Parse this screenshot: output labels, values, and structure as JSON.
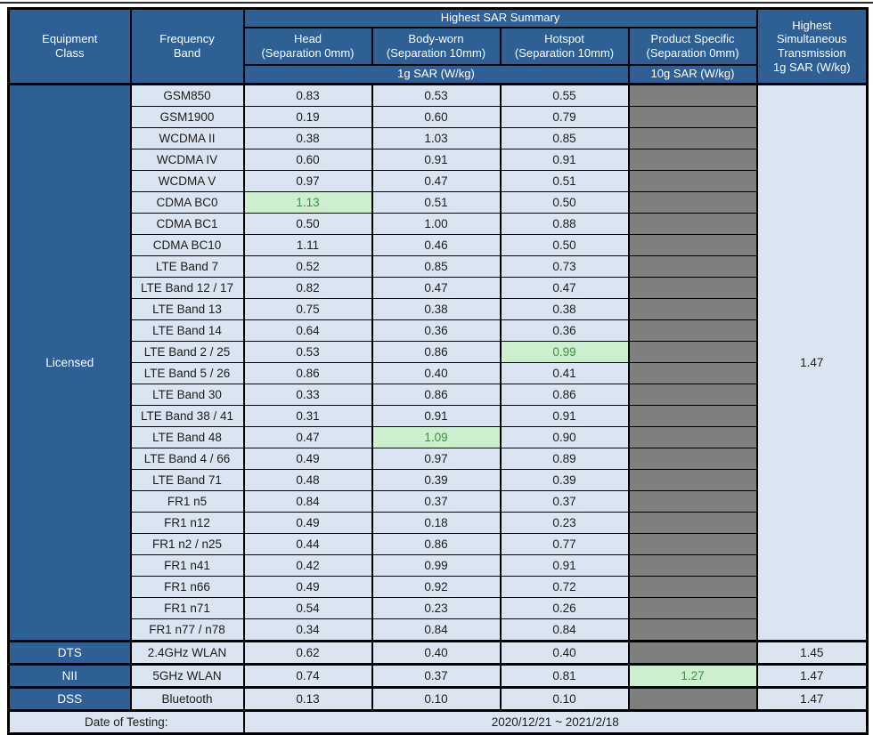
{
  "table": {
    "header": {
      "equipment_class": "Equipment\nClass",
      "frequency_band": "Frequency\nBand",
      "sar_summary": "Highest SAR Summary",
      "head": "Head\n(Separation 0mm)",
      "body_worn": "Body-worn\n(Separation 10mm)",
      "hotspot": "Hotspot\n(Separation 10mm)",
      "product_specific": "Product Specific\n(Separation 0mm)",
      "sar_1g": "1g SAR (W/kg)",
      "sar_10g": "10g SAR (W/kg)",
      "simultaneous": "Highest\nSimultaneous\nTransmission\n1g SAR (W/kg)"
    },
    "sections": [
      {
        "equipment_class": "Licensed",
        "simultaneous": "1.47",
        "rows": [
          {
            "band": "GSM850",
            "head": "0.83",
            "body": "0.53",
            "hotspot": "0.55",
            "product": null
          },
          {
            "band": "GSM1900",
            "head": "0.19",
            "body": "0.60",
            "hotspot": "0.79",
            "product": null
          },
          {
            "band": "WCDMA II",
            "head": "0.38",
            "body": "1.03",
            "hotspot": "0.85",
            "product": null
          },
          {
            "band": "WCDMA IV",
            "head": "0.60",
            "body": "0.91",
            "hotspot": "0.91",
            "product": null
          },
          {
            "band": "WCDMA V",
            "head": "0.97",
            "body": "0.47",
            "hotspot": "0.51",
            "product": null
          },
          {
            "band": "CDMA BC0",
            "head": "1.13",
            "body": "0.51",
            "hotspot": "0.50",
            "product": null,
            "highlight": "head"
          },
          {
            "band": "CDMA BC1",
            "head": "0.50",
            "body": "1.00",
            "hotspot": "0.88",
            "product": null
          },
          {
            "band": "CDMA BC10",
            "head": "1.11",
            "body": "0.46",
            "hotspot": "0.50",
            "product": null
          },
          {
            "band": "LTE Band 7",
            "head": "0.52",
            "body": "0.85",
            "hotspot": "0.73",
            "product": null
          },
          {
            "band": "LTE Band 12 / 17",
            "head": "0.82",
            "body": "0.47",
            "hotspot": "0.47",
            "product": null
          },
          {
            "band": "LTE Band 13",
            "head": "0.75",
            "body": "0.38",
            "hotspot": "0.38",
            "product": null
          },
          {
            "band": "LTE Band 14",
            "head": "0.64",
            "body": "0.36",
            "hotspot": "0.36",
            "product": null
          },
          {
            "band": "LTE Band 2 / 25",
            "head": "0.53",
            "body": "0.86",
            "hotspot": "0.99",
            "product": null,
            "highlight": "hotspot"
          },
          {
            "band": "LTE Band 5 / 26",
            "head": "0.86",
            "body": "0.40",
            "hotspot": "0.41",
            "product": null
          },
          {
            "band": "LTE Band 30",
            "head": "0.33",
            "body": "0.86",
            "hotspot": "0.86",
            "product": null
          },
          {
            "band": "LTE Band 38 / 41",
            "head": "0.31",
            "body": "0.91",
            "hotspot": "0.91",
            "product": null
          },
          {
            "band": "LTE Band 48",
            "head": "0.47",
            "body": "1.09",
            "hotspot": "0.90",
            "product": null,
            "highlight": "body"
          },
          {
            "band": "LTE Band 4 / 66",
            "head": "0.49",
            "body": "0.97",
            "hotspot": "0.89",
            "product": null
          },
          {
            "band": "LTE Band 71",
            "head": "0.48",
            "body": "0.39",
            "hotspot": "0.39",
            "product": null
          },
          {
            "band": "FR1 n5",
            "head": "0.84",
            "body": "0.37",
            "hotspot": "0.37",
            "product": null
          },
          {
            "band": "FR1 n12",
            "head": "0.49",
            "body": "0.18",
            "hotspot": "0.23",
            "product": null
          },
          {
            "band": "FR1 n2 / n25",
            "head": "0.44",
            "body": "0.86",
            "hotspot": "0.77",
            "product": null
          },
          {
            "band": "FR1 n41",
            "head": "0.42",
            "body": "0.99",
            "hotspot": "0.91",
            "product": null
          },
          {
            "band": "FR1 n66",
            "head": "0.49",
            "body": "0.92",
            "hotspot": "0.72",
            "product": null
          },
          {
            "band": "FR1 n71",
            "head": "0.54",
            "body": "0.23",
            "hotspot": "0.26",
            "product": null
          },
          {
            "band": "FR1 n77 / n78",
            "head": "0.34",
            "body": "0.84",
            "hotspot": "0.84",
            "product": null
          }
        ]
      },
      {
        "equipment_class": "DTS",
        "simultaneous": "1.45",
        "rows": [
          {
            "band": "2.4GHz WLAN",
            "head": "0.62",
            "body": "0.40",
            "hotspot": "0.40",
            "product": null
          }
        ]
      },
      {
        "equipment_class": "NII",
        "simultaneous": "1.47",
        "rows": [
          {
            "band": "5GHz WLAN",
            "head": "0.74",
            "body": "0.37",
            "hotspot": "0.81",
            "product": "1.27",
            "highlight": "product"
          }
        ]
      },
      {
        "equipment_class": "DSS",
        "simultaneous": "1.47",
        "rows": [
          {
            "band": "Bluetooth",
            "head": "0.13",
            "body": "0.10",
            "hotspot": "0.10",
            "product": null
          }
        ]
      }
    ],
    "footer": {
      "label": "Date of Testing:",
      "value": "2020/12/21 ~ 2021/2/18"
    },
    "colors": {
      "header_blue": "#2E5F95",
      "row_light_blue": "#DBE5F1",
      "gray_na": "#7F7F7F",
      "highlight_green_bg": "#CDEFD0",
      "highlight_green_text": "#3E8E41",
      "border": "#000000"
    }
  }
}
